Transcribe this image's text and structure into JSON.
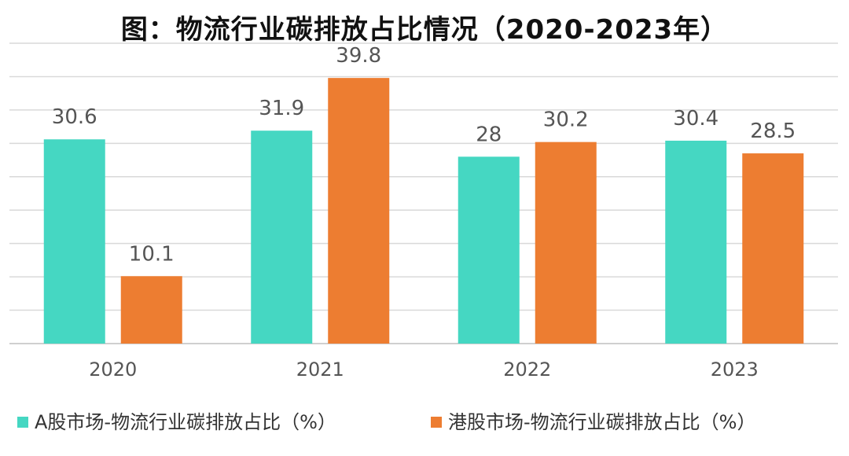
{
  "chart_data": {
    "type": "bar",
    "title": "图：物流行业碳排放占比情况（2020-2023年）",
    "categories": [
      "2020",
      "2021",
      "2022",
      "2023"
    ],
    "series": [
      {
        "name": "A股市场-物流行业碳排放占比（%）",
        "color": "#45D7C2",
        "values": [
          30.6,
          31.9,
          28,
          30.4
        ]
      },
      {
        "name": "港股市场-物流行业碳排放占比（%）",
        "color": "#ED7D31",
        "values": [
          10.1,
          39.8,
          30.2,
          28.5
        ]
      }
    ],
    "ylim": [
      0,
      45
    ],
    "ytick_step": 5,
    "grid": true,
    "legend": "bottom",
    "data_labels": true
  }
}
